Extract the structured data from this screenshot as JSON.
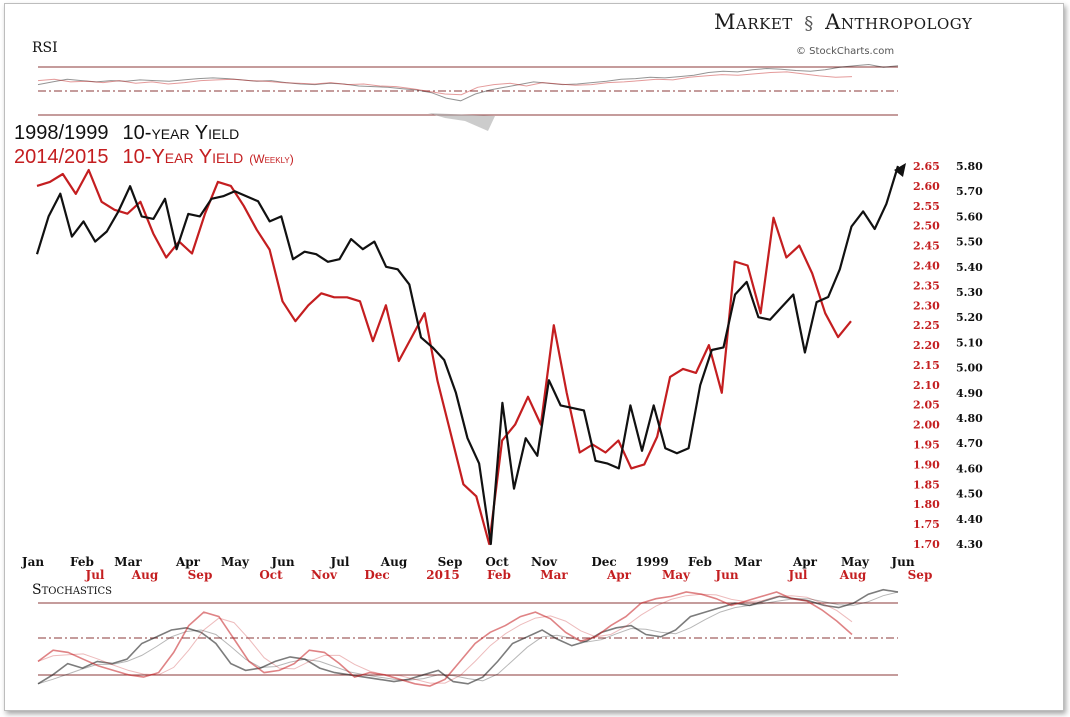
{
  "header": {
    "brand_left": "Market",
    "brand_right": "Anthropology",
    "credit": "© StockCharts.com"
  },
  "chart_data": [
    {
      "type": "line",
      "title": "RSI",
      "panel": "upper-indicator",
      "series": [
        {
          "color": "#111111",
          "values": [
            44,
            48,
            52,
            50,
            48,
            50,
            49,
            51,
            50,
            49,
            51,
            53,
            54,
            53,
            51,
            49,
            50,
            47,
            45,
            44,
            46,
            45,
            42,
            41,
            40,
            38,
            36,
            32,
            24,
            20,
            30,
            36,
            40,
            44,
            48,
            46,
            44,
            45,
            47,
            49,
            52,
            53,
            55,
            54,
            56,
            58,
            62,
            64,
            63,
            66,
            68,
            67,
            65,
            64,
            66,
            70,
            72,
            74,
            70,
            72
          ]
        },
        {
          "color": "#c41e20",
          "values": [
            50,
            52,
            48,
            49,
            47,
            50,
            46,
            48,
            45,
            47,
            50,
            51,
            52,
            50,
            49,
            47,
            46,
            45,
            47,
            44,
            45,
            42,
            41,
            38,
            34,
            30,
            29,
            40,
            44,
            46,
            42,
            47,
            45,
            43,
            44,
            47,
            48,
            50,
            52,
            51,
            55,
            57,
            59,
            58,
            60,
            62,
            63,
            60,
            57,
            55,
            56
          ]
        }
      ]
    },
    {
      "type": "line",
      "title": "",
      "panel": "main",
      "series": [
        {
          "name": "1998/1999 10-year Yield",
          "color": "#111111",
          "axis": "right-black",
          "values": [
            5.45,
            5.6,
            5.69,
            5.52,
            5.58,
            5.5,
            5.54,
            5.62,
            5.72,
            5.6,
            5.59,
            5.67,
            5.47,
            5.61,
            5.6,
            5.67,
            5.68,
            5.7,
            5.68,
            5.66,
            5.58,
            5.6,
            5.43,
            5.46,
            5.45,
            5.42,
            5.43,
            5.51,
            5.47,
            5.5,
            5.4,
            5.39,
            5.33,
            5.12,
            5.08,
            5.03,
            4.9,
            4.72,
            4.62,
            4.3,
            4.86,
            4.52,
            4.72,
            4.65,
            4.95,
            4.85,
            4.84,
            4.83,
            4.63,
            4.62,
            4.6,
            4.85,
            4.67,
            4.85,
            4.68,
            4.66,
            4.68,
            4.93,
            5.07,
            5.08,
            5.29,
            5.34,
            5.2,
            5.19,
            5.24,
            5.29,
            5.06,
            5.26,
            5.28,
            5.39,
            5.56,
            5.62,
            5.55,
            5.65,
            5.8
          ]
        },
        {
          "name": "2014/2015 10-Year Yield",
          "color": "#c41e20",
          "axis": "left-red",
          "values": [
            2.6,
            2.61,
            2.63,
            2.58,
            2.64,
            2.56,
            2.54,
            2.53,
            2.56,
            2.48,
            2.42,
            2.46,
            2.43,
            2.53,
            2.61,
            2.6,
            2.55,
            2.49,
            2.44,
            2.31,
            2.26,
            2.3,
            2.33,
            2.32,
            2.32,
            2.31,
            2.21,
            2.3,
            2.16,
            2.22,
            2.28,
            2.11,
            1.98,
            1.85,
            1.82,
            1.7,
            1.96,
            2.0,
            2.07,
            2.0,
            2.25,
            2.08,
            1.93,
            1.95,
            1.93,
            1.96,
            1.89,
            1.9,
            1.97,
            2.12,
            2.14,
            2.13,
            2.2,
            2.08,
            2.41,
            2.4,
            2.28,
            2.52,
            2.42,
            2.45,
            2.38,
            2.28,
            2.22,
            2.26
          ]
        }
      ],
      "axes": {
        "right_black": {
          "ylim": [
            4.3,
            5.8
          ],
          "ticks": [
            "5.80",
            "5.70",
            "5.60",
            "5.50",
            "5.40",
            "5.30",
            "5.20",
            "5.10",
            "5.00",
            "4.90",
            "4.80",
            "4.70",
            "4.60",
            "4.50",
            "4.40",
            "4.30"
          ]
        },
        "left_red": {
          "ylim": [
            1.7,
            2.65
          ],
          "ticks": [
            "2.65",
            "2.60",
            "2.55",
            "2.50",
            "2.45",
            "2.40",
            "2.35",
            "2.30",
            "2.25",
            "2.20",
            "2.15",
            "2.10",
            "2.05",
            "2.00",
            "1.95",
            "1.90",
            "1.85",
            "1.80",
            "1.75",
            "1.70"
          ]
        },
        "x_black_labels": [
          "Jan",
          "Feb",
          "Mar",
          "Apr",
          "May",
          "Jun",
          "Jul",
          "Aug",
          "Sep",
          "Oct",
          "Nov",
          "Dec",
          "1999",
          "Feb",
          "Mar",
          "Apr",
          "May",
          "Jun"
        ],
        "x_red_labels": [
          "Jul",
          "Aug",
          "Sep",
          "Oct",
          "Nov",
          "Dec",
          "2015",
          "Feb",
          "Mar",
          "Apr",
          "May",
          "Jun",
          "Jul",
          "Aug",
          "Sep"
        ]
      },
      "legend": {
        "line1_years": "1998/1999",
        "line1_label": "10-year Yield",
        "line2_years": "2014/2015",
        "line2_label": "10-Year Yield",
        "line2_suffix": "(Weekly)"
      }
    },
    {
      "type": "line",
      "title": "Stochastics",
      "panel": "lower-indicator",
      "series": [
        {
          "color": "#111111",
          "values": [
            10,
            18,
            28,
            24,
            30,
            28,
            32,
            46,
            52,
            58,
            60,
            56,
            46,
            28,
            22,
            24,
            30,
            34,
            32,
            24,
            20,
            18,
            16,
            14,
            12,
            14,
            18,
            22,
            12,
            10,
            16,
            30,
            46,
            52,
            58,
            50,
            44,
            48,
            56,
            60,
            62,
            54,
            52,
            58,
            70,
            74,
            78,
            82,
            80,
            84,
            88,
            86,
            84,
            80,
            78,
            82,
            90,
            94,
            92
          ]
        },
        {
          "color": "#c41e20",
          "values": [
            30,
            40,
            38,
            32,
            26,
            22,
            18,
            16,
            20,
            38,
            62,
            74,
            70,
            50,
            30,
            20,
            22,
            28,
            40,
            38,
            28,
            16,
            20,
            18,
            14,
            10,
            8,
            14,
            30,
            46,
            56,
            62,
            70,
            74,
            68,
            56,
            48,
            52,
            62,
            70,
            82,
            86,
            88,
            92,
            90,
            86,
            80,
            84,
            88,
            92,
            86,
            84,
            76,
            66,
            54
          ]
        }
      ]
    }
  ]
}
